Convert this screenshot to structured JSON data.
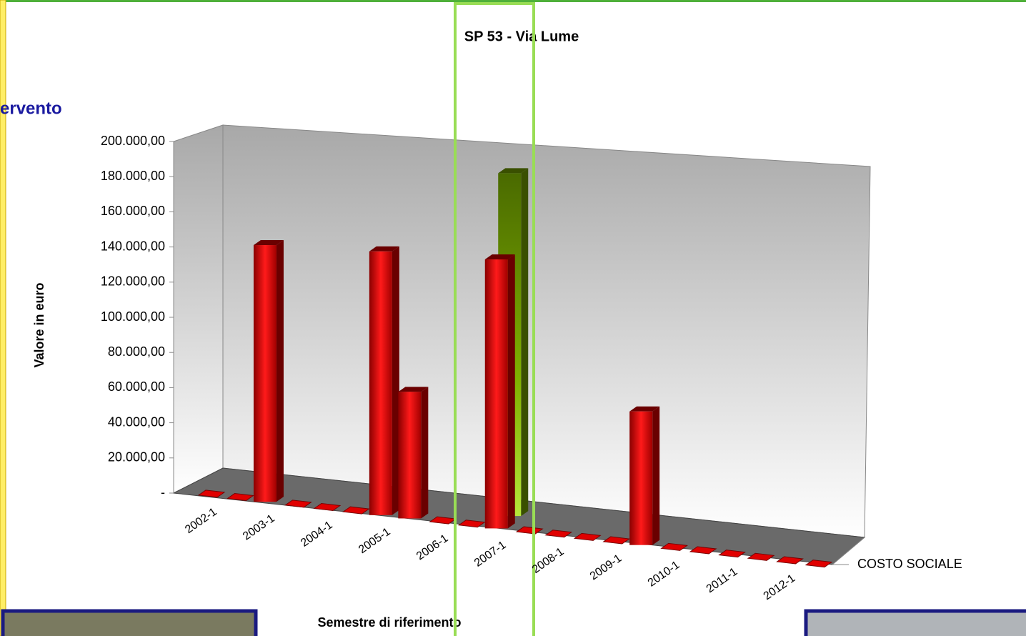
{
  "header_fragment": "ervento",
  "chart_data": {
    "type": "bar3d",
    "title": "SP 53 - Via Lume",
    "y_label": "Valore in euro",
    "x_label": "Semestre di riferimento",
    "categories": [
      "2002-1",
      null,
      "2003-1",
      null,
      "2004-1",
      null,
      "2005-1",
      null,
      "2006-1",
      null,
      "2007-1",
      null,
      "2008-1",
      null,
      "2009-1",
      null,
      "2010-1",
      null,
      "2011-1",
      null,
      "2012-1",
      null
    ],
    "series": [
      {
        "name": "COSTO SOCIALE",
        "color": "#e00000",
        "values": [
          0,
          0,
          146000,
          0,
          0,
          0,
          150000,
          72000,
          0,
          0,
          153000,
          0,
          0,
          0,
          0,
          76000,
          0,
          0,
          0,
          0,
          0,
          0
        ]
      },
      {
        "color": "#6a9a00",
        "values": [
          null,
          null,
          null,
          null,
          null,
          null,
          null,
          null,
          null,
          null,
          null,
          195000,
          null,
          null,
          null,
          null,
          null,
          null,
          null,
          null,
          null,
          null
        ]
      }
    ],
    "ylim": [
      0,
      200000
    ],
    "yticks": [
      {
        "value": 0,
        "label": "-"
      },
      {
        "value": 20000,
        "label": "20.000,00"
      },
      {
        "value": 40000,
        "label": "40.000,00"
      },
      {
        "value": 60000,
        "label": "60.000,00"
      },
      {
        "value": 80000,
        "label": "80.000,00"
      },
      {
        "value": 100000,
        "label": "100.000,00"
      },
      {
        "value": 120000,
        "label": "120.000,00"
      },
      {
        "value": 140000,
        "label": "140.000,00"
      },
      {
        "value": 160000,
        "label": "160.000,00"
      },
      {
        "value": 180000,
        "label": "180.000,00"
      },
      {
        "value": 200000,
        "label": "200.000,00"
      }
    ]
  }
}
